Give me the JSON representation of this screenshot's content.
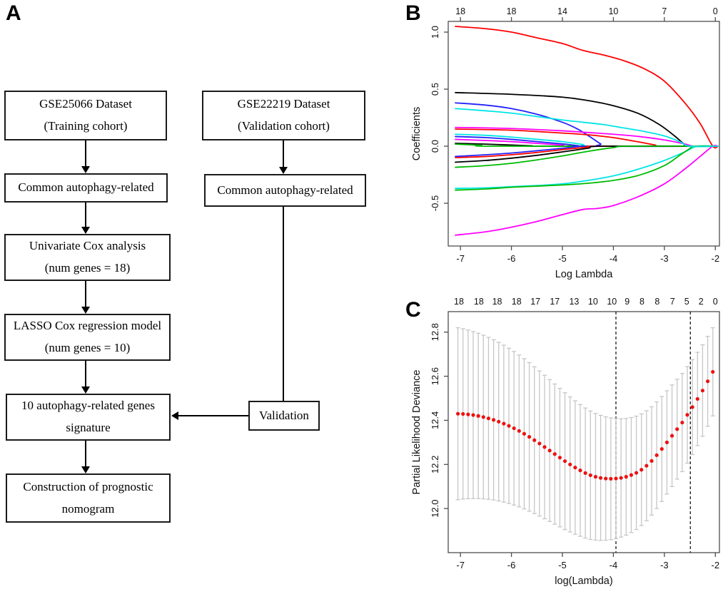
{
  "panels": {
    "a_label": "A",
    "b_label": "B",
    "c_label": "C"
  },
  "flowchart": {
    "boxes": [
      {
        "id": "training",
        "line1": "GSE25066 Dataset",
        "line2": "(Training cohort)"
      },
      {
        "id": "val-cohort",
        "line1": "GSE22219 Dataset",
        "line2": "(Validation cohort)"
      },
      {
        "id": "common-left",
        "line1": "Common autophagy-related",
        "line2": ""
      },
      {
        "id": "common-right",
        "line1": "Common autophagy-related",
        "line2": ""
      },
      {
        "id": "univariate",
        "line1": "Univariate Cox analysis",
        "line2": "(num genes = 18)"
      },
      {
        "id": "lasso",
        "line1": "LASSO Cox regression model",
        "line2": "(num genes = 10)"
      },
      {
        "id": "signature",
        "line1": "10 autophagy-related genes",
        "line2": "signature"
      },
      {
        "id": "validation",
        "line1": "Validation",
        "line2": ""
      },
      {
        "id": "nomogram",
        "line1": "Construction of prognostic",
        "line2": "nomogram"
      }
    ]
  },
  "chart_data": [
    {
      "type": "line",
      "panel": "B",
      "xlabel": "Log Lambda",
      "ylabel": "Coefficients",
      "xlim": [
        -7.24,
        -1.92
      ],
      "ylim": [
        -0.875,
        1.094
      ],
      "xtick_values": [
        -7,
        -6,
        -5,
        -4,
        -3,
        -2
      ],
      "xtick_labels": [
        "-7",
        "-6",
        "-5",
        "-4",
        "-3",
        "-2"
      ],
      "ytick_values": [
        -0.5,
        0.0,
        0.5,
        1.0
      ],
      "ytick_labels": [
        "-0.5",
        "0.0",
        "0.5",
        "1.0"
      ],
      "top_axis": {
        "positions": [
          -7,
          -6,
          -5,
          -4,
          -3,
          -2
        ],
        "labels": [
          "18",
          "18",
          "14",
          "10",
          "7",
          "0"
        ]
      },
      "grid": false,
      "legend": "none",
      "series": [
        {
          "name": "coef-red-1",
          "color": "#ff0000",
          "points": [
            [
              -7.1,
              1.05
            ],
            [
              -6.5,
              1.03
            ],
            [
              -6,
              1.0
            ],
            [
              -5.5,
              0.95
            ],
            [
              -5,
              0.9
            ],
            [
              -4.6,
              0.84
            ],
            [
              -4.2,
              0.8
            ],
            [
              -3.8,
              0.75
            ],
            [
              -3.4,
              0.68
            ],
            [
              -3.0,
              0.57
            ],
            [
              -2.6,
              0.38
            ],
            [
              -2.3,
              0.2
            ],
            [
              -2.05,
              0
            ]
          ]
        },
        {
          "name": "coef-black-1",
          "color": "#000000",
          "points": [
            [
              -7.1,
              0.47
            ],
            [
              -6,
              0.455
            ],
            [
              -5,
              0.43
            ],
            [
              -4.5,
              0.4
            ],
            [
              -4,
              0.355
            ],
            [
              -3.5,
              0.285
            ],
            [
              -3.1,
              0.19
            ],
            [
              -2.8,
              0.09
            ],
            [
              -2.62,
              0.02
            ],
            [
              -2.55,
              0
            ]
          ]
        },
        {
          "name": "coef-blue-1",
          "color": "#2222ff",
          "points": [
            [
              -7.1,
              0.38
            ],
            [
              -6.5,
              0.36
            ],
            [
              -6,
              0.33
            ],
            [
              -5.5,
              0.28
            ],
            [
              -5,
              0.21
            ],
            [
              -4.7,
              0.15
            ],
            [
              -4.45,
              0.08
            ],
            [
              -4.25,
              0.02
            ],
            [
              -4.15,
              0
            ]
          ]
        },
        {
          "name": "coef-magenta-1",
          "color": "#ff00ff",
          "points": [
            [
              -7.1,
              0.165
            ],
            [
              -6,
              0.155
            ],
            [
              -5,
              0.135
            ],
            [
              -4.5,
              0.12
            ],
            [
              -4,
              0.105
            ],
            [
              -3.5,
              0.085
            ],
            [
              -3,
              0.055
            ],
            [
              -2.6,
              0.02
            ],
            [
              -2.42,
              0
            ]
          ]
        },
        {
          "name": "coef-red-2",
          "color": "#ff0000",
          "points": [
            [
              -7.1,
              0.15
            ],
            [
              -6,
              0.14
            ],
            [
              -5,
              0.115
            ],
            [
              -4.5,
              0.1
            ],
            [
              -4,
              0.075
            ],
            [
              -3.6,
              0.045
            ],
            [
              -3.2,
              0.012
            ],
            [
              -3.05,
              0
            ]
          ]
        },
        {
          "name": "coef-cyan-2",
          "color": "#00e5e5",
          "points": [
            [
              -7.1,
              0.105
            ],
            [
              -6.5,
              0.095
            ],
            [
              -6,
              0.08
            ],
            [
              -5.5,
              0.06
            ],
            [
              -5,
              0.04
            ],
            [
              -4.6,
              0.015
            ],
            [
              -4.4,
              0
            ]
          ]
        },
        {
          "name": "coef-blue-2",
          "color": "#2222ff",
          "points": [
            [
              -7.1,
              0.085
            ],
            [
              -6.5,
              0.075
            ],
            [
              -6,
              0.06
            ],
            [
              -5.5,
              0.04
            ],
            [
              -5,
              0.02
            ],
            [
              -4.7,
              0.005
            ],
            [
              -4.55,
              0
            ]
          ]
        },
        {
          "name": "coef-magenta-2",
          "color": "#ff00ff",
          "points": [
            [
              -7.1,
              0.06
            ],
            [
              -6.5,
              0.05
            ],
            [
              -6,
              0.04
            ],
            [
              -5.5,
              0.025
            ],
            [
              -5,
              0.01
            ],
            [
              -4.75,
              0
            ]
          ]
        },
        {
          "name": "coef-black-2",
          "color": "#000000",
          "points": [
            [
              -7.1,
              0.025
            ],
            [
              -6.5,
              0.018
            ],
            [
              -6,
              0.01
            ],
            [
              -5.6,
              0.003
            ],
            [
              -5.4,
              0
            ]
          ]
        },
        {
          "name": "coef-green-1",
          "color": "#00bb00",
          "points": [
            [
              -7.1,
              0.018
            ],
            [
              -6.6,
              0.008
            ],
            [
              -6.3,
              0
            ]
          ]
        },
        {
          "name": "coef-blue-3",
          "color": "#2222ff",
          "points": [
            [
              -7.1,
              -0.09
            ],
            [
              -6.5,
              -0.075
            ],
            [
              -6,
              -0.06
            ],
            [
              -5.5,
              -0.04
            ],
            [
              -5,
              -0.018
            ],
            [
              -4.7,
              -0.004
            ],
            [
              -4.55,
              0
            ]
          ]
        },
        {
          "name": "coef-red-3",
          "color": "#ff0000",
          "points": [
            [
              -7.1,
              -0.1
            ],
            [
              -6.5,
              -0.09
            ],
            [
              -6,
              -0.075
            ],
            [
              -5.5,
              -0.055
            ],
            [
              -5,
              -0.03
            ],
            [
              -4.5,
              -0.008
            ],
            [
              -4.3,
              0
            ]
          ]
        },
        {
          "name": "coef-black-3",
          "color": "#000000",
          "points": [
            [
              -7.1,
              -0.14
            ],
            [
              -6.5,
              -0.125
            ],
            [
              -6,
              -0.105
            ],
            [
              -5.5,
              -0.08
            ],
            [
              -5,
              -0.05
            ],
            [
              -4.5,
              -0.018
            ],
            [
              -4.2,
              0
            ]
          ]
        },
        {
          "name": "coef-green-2",
          "color": "#00bb00",
          "points": [
            [
              -7.1,
              -0.185
            ],
            [
              -6.5,
              -0.17
            ],
            [
              -6,
              -0.15
            ],
            [
              -5.5,
              -0.12
            ],
            [
              -5,
              -0.085
            ],
            [
              -4.5,
              -0.045
            ],
            [
              -4.0,
              -0.012
            ],
            [
              -3.7,
              0
            ]
          ]
        },
        {
          "name": "coef-cyan-3",
          "color": "#00e5e5",
          "points": [
            [
              -7.1,
              -0.37
            ],
            [
              -6.5,
              -0.365
            ],
            [
              -6,
              -0.355
            ],
            [
              -5.5,
              -0.345
            ],
            [
              -5,
              -0.33
            ],
            [
              -4.5,
              -0.3
            ],
            [
              -4,
              -0.26
            ],
            [
              -3.5,
              -0.2
            ],
            [
              -3,
              -0.125
            ],
            [
              -2.6,
              -0.05
            ],
            [
              -2.35,
              0
            ]
          ]
        },
        {
          "name": "coef-green-3",
          "color": "#00bb00",
          "points": [
            [
              -7.1,
              -0.385
            ],
            [
              -6.5,
              -0.375
            ],
            [
              -6,
              -0.36
            ],
            [
              -5.5,
              -0.35
            ],
            [
              -5,
              -0.34
            ],
            [
              -4.5,
              -0.325
            ],
            [
              -4,
              -0.3
            ],
            [
              -3.5,
              -0.255
            ],
            [
              -3,
              -0.17
            ],
            [
              -2.7,
              -0.08
            ],
            [
              -2.5,
              -0.02
            ],
            [
              -2.4,
              0
            ]
          ]
        },
        {
          "name": "coef-magenta-3",
          "color": "#ff00ff",
          "points": [
            [
              -7.1,
              -0.78
            ],
            [
              -6.5,
              -0.75
            ],
            [
              -6,
              -0.71
            ],
            [
              -5.5,
              -0.66
            ],
            [
              -5,
              -0.6
            ],
            [
              -4.6,
              -0.555
            ],
            [
              -4.3,
              -0.545
            ],
            [
              -4.0,
              -0.52
            ],
            [
              -3.5,
              -0.44
            ],
            [
              -3.0,
              -0.33
            ],
            [
              -2.6,
              -0.2
            ],
            [
              -2.3,
              -0.09
            ],
            [
              -2.05,
              0
            ]
          ]
        },
        {
          "name": "coef-cyan-1",
          "color": "#00e5e5",
          "points": [
            [
              -7.1,
              0.33
            ],
            [
              -6.5,
              0.31
            ],
            [
              -6,
              0.29
            ],
            [
              -5.5,
              0.26
            ],
            [
              -5,
              0.23
            ],
            [
              -4.6,
              0.21
            ],
            [
              -4.2,
              0.19
            ],
            [
              -3.8,
              0.16
            ],
            [
              -3.4,
              0.13
            ],
            [
              -3.0,
              0.09
            ],
            [
              -2.7,
              0.04
            ],
            [
              -2.5,
              0
            ]
          ]
        }
      ]
    },
    {
      "type": "scatter",
      "panel": "C",
      "xlabel": "log(Lambda)",
      "ylabel": "Partial Likelihood Deviance",
      "xlim": [
        -7.24,
        -1.92
      ],
      "ylim": [
        11.8,
        12.893
      ],
      "xtick_values": [
        -7,
        -6,
        -5,
        -4,
        -3,
        -2
      ],
      "xtick_labels": [
        "-7",
        "-6",
        "-5",
        "-4",
        "-3",
        "-2"
      ],
      "ytick_values": [
        12.0,
        12.2,
        12.4,
        12.6,
        12.8
      ],
      "ytick_labels": [
        "12.0",
        "12.2",
        "12.4",
        "12.6",
        "12.8"
      ],
      "top_axis": {
        "positions": [
          -7.03,
          -6.64,
          -6.28,
          -5.9,
          -5.53,
          -5.15,
          -4.77,
          -4.4,
          -4.03,
          -3.73,
          -3.44,
          -3.14,
          -2.84,
          -2.56,
          -2.28,
          -2.0
        ],
        "labels": [
          "18",
          "18",
          "18",
          "18",
          "17",
          "17",
          "13",
          "10",
          "10",
          "9",
          "8",
          "8",
          "7",
          "5",
          "2",
          "0"
        ]
      },
      "vlines": [
        -3.95,
        -2.49
      ],
      "point_color": "#ee1111",
      "errorbar_color": "#c6c6c6",
      "grid": false,
      "legend": "none",
      "x": [
        -7.05,
        -6.95,
        -6.85,
        -6.75,
        -6.65,
        -6.55,
        -6.45,
        -6.35,
        -6.25,
        -6.15,
        -6.05,
        -5.95,
        -5.85,
        -5.75,
        -5.65,
        -5.55,
        -5.45,
        -5.35,
        -5.25,
        -5.15,
        -5.05,
        -4.95,
        -4.85,
        -4.75,
        -4.65,
        -4.55,
        -4.45,
        -4.35,
        -4.25,
        -4.15,
        -4.05,
        -3.95,
        -3.85,
        -3.75,
        -3.65,
        -3.55,
        -3.45,
        -3.35,
        -3.25,
        -3.15,
        -3.05,
        -2.95,
        -2.85,
        -2.75,
        -2.65,
        -2.55,
        -2.45,
        -2.35,
        -2.25,
        -2.15,
        -2.05
      ],
      "y": [
        12.43,
        12.429,
        12.427,
        12.424,
        12.42,
        12.415,
        12.409,
        12.402,
        12.394,
        12.385,
        12.375,
        12.364,
        12.352,
        12.339,
        12.325,
        12.31,
        12.295,
        12.279,
        12.263,
        12.247,
        12.231,
        12.215,
        12.2,
        12.186,
        12.173,
        12.161,
        12.151,
        12.144,
        12.139,
        12.136,
        12.135,
        12.136,
        12.139,
        12.144,
        12.152,
        12.162,
        12.176,
        12.194,
        12.216,
        12.242,
        12.27,
        12.3,
        12.33,
        12.36,
        12.39,
        12.425,
        12.46,
        12.497,
        12.535,
        12.577,
        12.62
      ],
      "se": [
        0.39,
        0.3862,
        0.3824,
        0.3786,
        0.3748,
        0.371,
        0.3672,
        0.3634,
        0.3596,
        0.3558,
        0.352,
        0.3482,
        0.3444,
        0.3406,
        0.3368,
        0.333,
        0.3292,
        0.3254,
        0.3216,
        0.3178,
        0.314,
        0.3102,
        0.3064,
        0.3026,
        0.2988,
        0.295,
        0.2912,
        0.2874,
        0.2836,
        0.2798,
        0.276,
        0.2722,
        0.2684,
        0.2646,
        0.2608,
        0.257,
        0.2532,
        0.2494,
        0.2456,
        0.2418,
        0.238,
        0.2342,
        0.2304,
        0.2266,
        0.2228,
        0.219,
        0.2152,
        0.2114,
        0.2076,
        0.2038,
        0.2
      ]
    }
  ]
}
